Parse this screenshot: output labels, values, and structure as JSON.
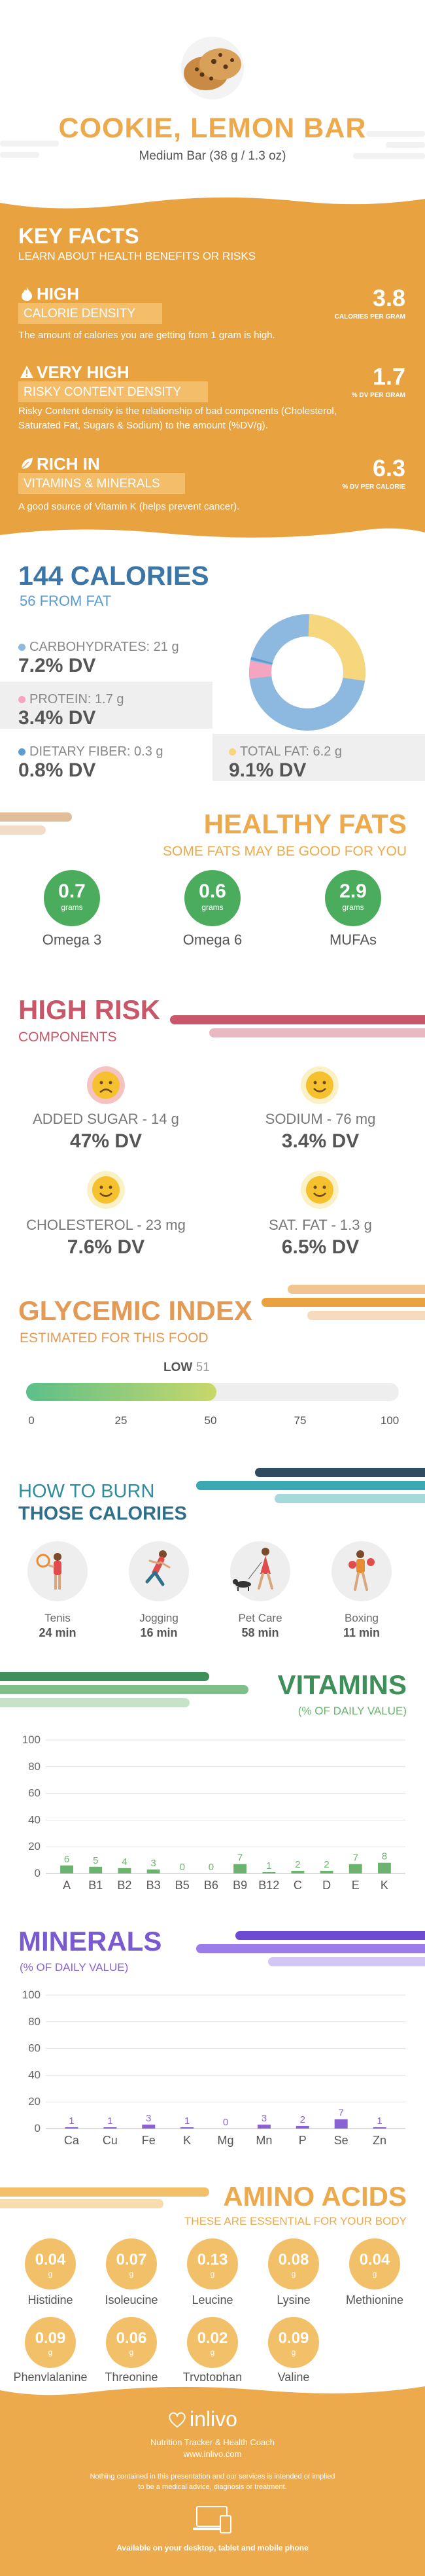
{
  "header": {
    "title": "COOKIE, LEMON BAR",
    "serving": "Medium Bar (38 g / 1.3 oz)"
  },
  "key_facts": {
    "title": "KEY FACTS",
    "subtitle": "LEARN ABOUT HEALTH BENEFITS OR RISKS",
    "items": [
      {
        "level": "HIGH",
        "name": "CALORIE DENSITY",
        "desc": "The amount of calories you are getting from 1 gram is high.",
        "value": "3.8",
        "unit": "CALORIES PER GRAM"
      },
      {
        "level": "VERY HIGH",
        "name": "RISKY CONTENT DENSITY",
        "desc": "Risky Content density is the relationship of bad components (Cholesterol, Saturated Fat, Sugars & Sodium) to the amount (%DV/g).",
        "value": "1.7",
        "unit": "% DV PER GRAM"
      },
      {
        "level": "RICH IN",
        "name": "VITAMINS & MINERALS",
        "desc": "A good source of Vitamin K (helps prevent cancer).",
        "value": "6.3",
        "unit": "% DV PER CALORIE"
      }
    ]
  },
  "calories": {
    "title": "144 CALORIES",
    "subtitle": "56 FROM FAT",
    "carbs_label": "CARBOHYDRATES: 21 g",
    "carbs_dv": "7.2% DV",
    "protein_label": "PROTEIN: 1.7 g",
    "protein_dv": "3.4% DV",
    "fiber_label": "DIETARY FIBER: 0.3 g",
    "fiber_dv": "0.8% DV",
    "fat_label": "TOTAL FAT: 6.2 g",
    "fat_dv": "9.1% DV",
    "colors": {
      "carbs": "#8db9e0",
      "protein": "#f4a5c0",
      "fiber": "#5a9bd0",
      "fat": "#f7d77d"
    }
  },
  "healthy_fats": {
    "title": "HEALTHY FATS",
    "subtitle": "SOME FATS MAY BE GOOD FOR YOU",
    "items": [
      {
        "value": "0.7",
        "unit": "grams",
        "name": "Omega 3"
      },
      {
        "value": "0.6",
        "unit": "grams",
        "name": "Omega 6"
      },
      {
        "value": "2.9",
        "unit": "grams",
        "name": "MUFAs"
      }
    ]
  },
  "high_risk": {
    "title": "HIGH RISK",
    "subtitle": "COMPONENTS",
    "items": [
      {
        "label": "ADDED SUGAR - 14 g",
        "dv": "47% DV",
        "mood": "sad"
      },
      {
        "label": "SODIUM - 76 mg",
        "dv": "3.4% DV",
        "mood": "happy"
      },
      {
        "label": "CHOLESTEROL - 23 mg",
        "dv": "7.6% DV",
        "mood": "happy"
      },
      {
        "label": "SAT. FAT - 1.3 g",
        "dv": "6.5% DV",
        "mood": "happy"
      }
    ]
  },
  "glycemic": {
    "title": "GLYCEMIC INDEX",
    "subtitle": "ESTIMATED FOR THIS FOOD",
    "level": "LOW",
    "value": "51",
    "value_num": 51,
    "ticks": [
      "0",
      "25",
      "50",
      "75",
      "100"
    ]
  },
  "burn": {
    "title_1": "HOW TO BURN",
    "title_2": "THOSE CALORIES",
    "items": [
      {
        "name": "Tenis",
        "time": "24 min",
        "icon": "tennis-icon"
      },
      {
        "name": "Jogging",
        "time": "16 min",
        "icon": "jogging-icon"
      },
      {
        "name": "Pet Care",
        "time": "58 min",
        "icon": "dog-walking-icon"
      },
      {
        "name": "Boxing",
        "time": "11 min",
        "icon": "boxing-icon"
      }
    ]
  },
  "vitamins": {
    "title": "VITAMINS",
    "subtitle": "(% OF DAILY VALUE)",
    "color": "#6bb36f"
  },
  "minerals": {
    "title": "MINERALS",
    "subtitle": "(% OF DAILY VALUE)",
    "color": "#8a63d2"
  },
  "chart_data": [
    {
      "type": "bar",
      "categories": [
        "A",
        "B1",
        "B2",
        "B3",
        "B5",
        "B6",
        "B9",
        "B12",
        "C",
        "D",
        "E",
        "K"
      ],
      "values": [
        6,
        5,
        4,
        3,
        0,
        0,
        7,
        1,
        2,
        2,
        7,
        8
      ],
      "ylim": [
        0,
        100
      ],
      "yticks": [
        "0",
        "20",
        "40",
        "60",
        "80",
        "100"
      ]
    },
    {
      "type": "bar",
      "categories": [
        "Ca",
        "Cu",
        "Fe",
        "K",
        "Mg",
        "Mn",
        "P",
        "Se",
        "Zn"
      ],
      "values": [
        1,
        1,
        3,
        1,
        0,
        3,
        2,
        7,
        1
      ],
      "ylim": [
        0,
        100
      ],
      "yticks": [
        "0",
        "20",
        "40",
        "60",
        "80",
        "100"
      ]
    }
  ],
  "amino": {
    "title": "AMINO ACIDS",
    "subtitle": "THESE ARE ESSENTIAL FOR YOUR BODY",
    "items": [
      {
        "value": "0.04",
        "unit": "g",
        "name": "Histidine"
      },
      {
        "value": "0.07",
        "unit": "g",
        "name": "Isoleucine"
      },
      {
        "value": "0.13",
        "unit": "g",
        "name": "Leucine"
      },
      {
        "value": "0.08",
        "unit": "g",
        "name": "Lysine"
      },
      {
        "value": "0.04",
        "unit": "g",
        "name": "Methionine"
      },
      {
        "value": "0.09",
        "unit": "g",
        "name": "Phenylalanine"
      },
      {
        "value": "0.06",
        "unit": "g",
        "name": "Threonine"
      },
      {
        "value": "0.02",
        "unit": "g",
        "name": "Tryptophan"
      },
      {
        "value": "0.09",
        "unit": "g",
        "name": "Valine"
      }
    ]
  },
  "footer": {
    "brand": "inlivo",
    "tagline": "Nutrition Tracker & Health Coach",
    "url": "www.inlivo.com",
    "disclaimer_1": "Nothing contained in this presentation and our services is intended or implied",
    "disclaimer_2": "to be a medical advice, diagnosis or treatment.",
    "available": "Available on your desktop, tablet and mobile phone"
  }
}
